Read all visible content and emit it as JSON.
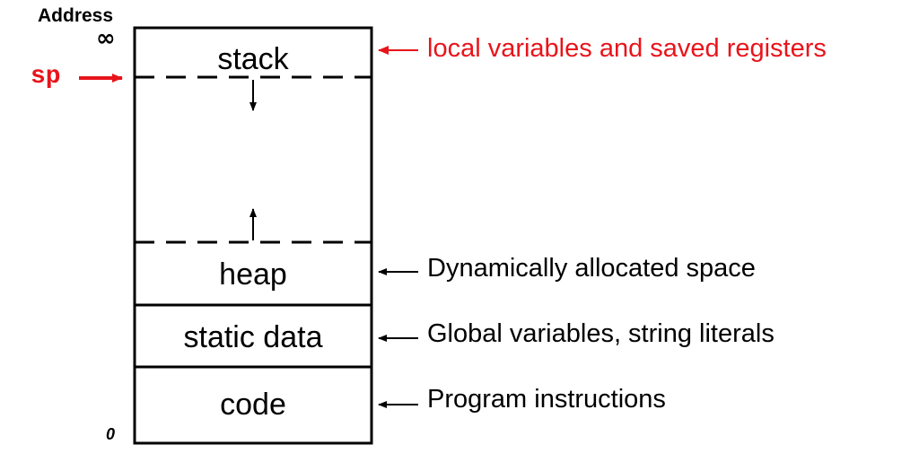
{
  "axis": {
    "address_label": "Address",
    "top_label": "∞",
    "bottom_label": "0"
  },
  "pointer": {
    "label": "sp",
    "color": "#e8141b"
  },
  "regions": [
    {
      "label": "stack",
      "annotation": "local variables and saved registers",
      "annotation_color": "#e8141b"
    },
    {
      "label": "heap",
      "annotation": "Dynamically allocated space",
      "annotation_color": "#000000"
    },
    {
      "label": "static data",
      "annotation": "Global variables, string literals",
      "annotation_color": "#000000"
    },
    {
      "label": "code",
      "annotation": "Program instructions",
      "annotation_color": "#000000"
    }
  ]
}
